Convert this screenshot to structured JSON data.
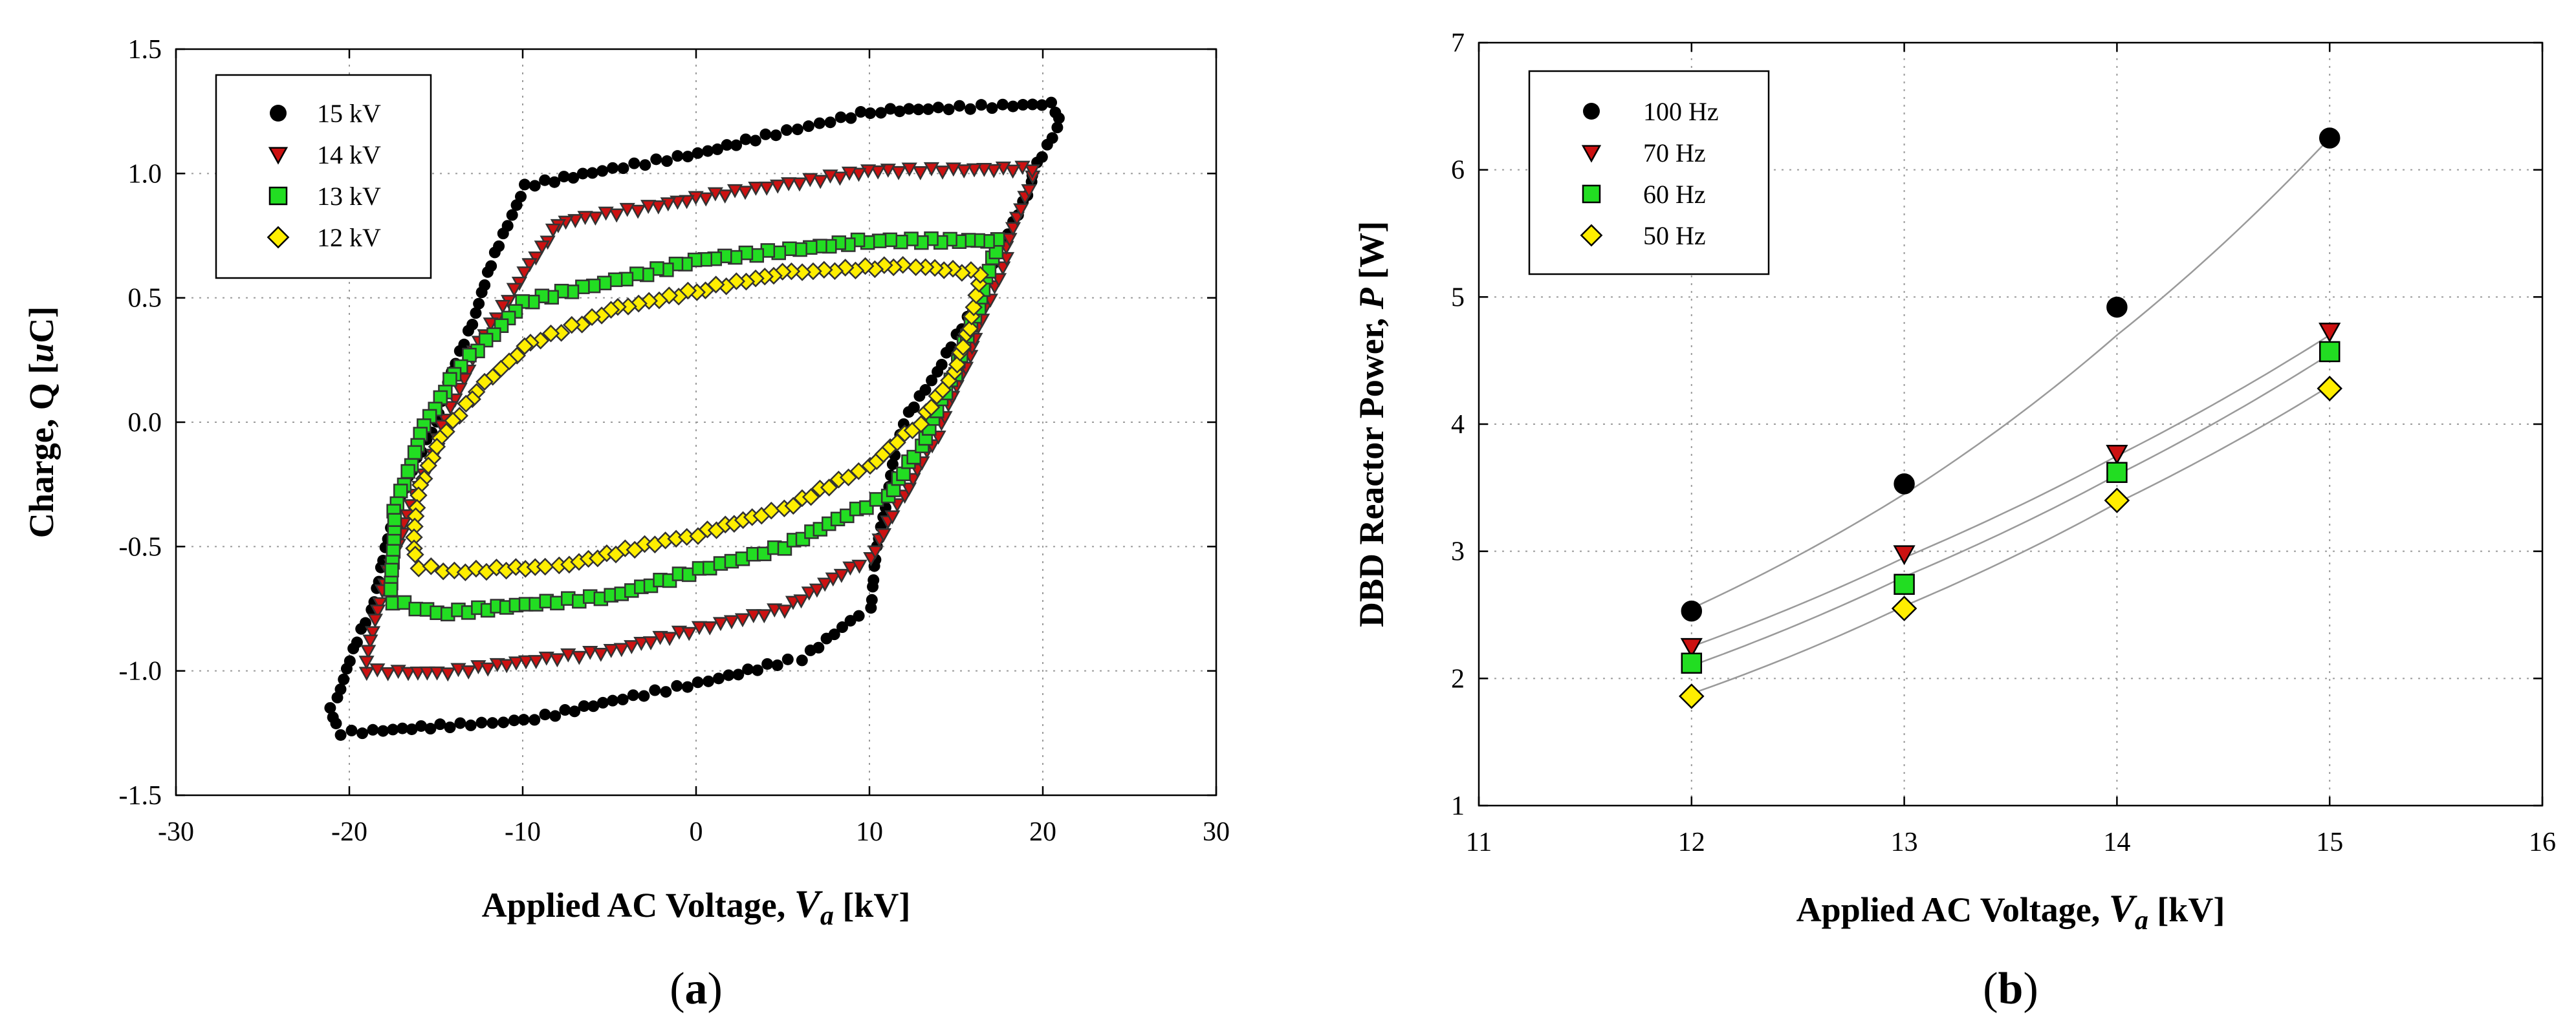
{
  "colors": {
    "series_15kV": "#000000",
    "series_14kV": "#cc1111",
    "series_13kV": "#22dd22",
    "series_12kV": "#ffee00",
    "fit_line": "#9a9a9a"
  },
  "panels": [
    {
      "label_pre": "(",
      "label_letter": "a",
      "label_post": ")"
    },
    {
      "label_pre": "(",
      "label_letter": "b",
      "label_post": ")"
    }
  ],
  "chart_data": [
    {
      "type": "scatter",
      "title": "",
      "xlabel_main": "Applied AC Voltage, ",
      "xlabel_var": "V",
      "xlabel_sub": "a",
      "xlabel_unit": " [kV]",
      "ylabel_main": "Charge, Q [",
      "ylabel_var": "u",
      "ylabel_unit": "C]",
      "xlim": [
        -30,
        30
      ],
      "ylim": [
        -1.5,
        1.5
      ],
      "xticks": [
        "-30",
        "-20",
        "-10",
        "0",
        "10",
        "20",
        "30"
      ],
      "yticks": [
        "-1.5",
        "-1.0",
        "-0.5",
        "0.0",
        "0.5",
        "1.0",
        "1.5"
      ],
      "grid": true,
      "legend_position": "top-left",
      "series": [
        {
          "name": "15 kV",
          "marker": "circle",
          "loop": [
            [
              -20.5,
              -1.25
            ],
            [
              -10,
              -1.2
            ],
            [
              0,
              -1.05
            ],
            [
              6,
              -0.95
            ],
            [
              10,
              -0.75
            ],
            [
              11,
              -0.3
            ],
            [
              12,
              0
            ],
            [
              14,
              0.2
            ],
            [
              17,
              0.6
            ],
            [
              19.5,
              1.0
            ],
            [
              21,
              1.22
            ],
            [
              20.5,
              1.28
            ],
            [
              10,
              1.25
            ],
            [
              0,
              1.08
            ],
            [
              -10,
              0.95
            ],
            [
              -13,
              0.4
            ],
            [
              -15,
              0
            ],
            [
              -17,
              -0.3
            ],
            [
              -19,
              -0.8
            ],
            [
              -21,
              -1.15
            ]
          ]
        },
        {
          "name": "14 kV",
          "marker": "triangle-down",
          "loop": [
            [
              -19,
              -1.0
            ],
            [
              -15,
              -1.01
            ],
            [
              -5,
              -0.92
            ],
            [
              5,
              -0.75
            ],
            [
              10,
              -0.55
            ],
            [
              12,
              -0.3
            ],
            [
              14,
              -0.05
            ],
            [
              16,
              0.3
            ],
            [
              18,
              0.7
            ],
            [
              19.5,
              1.02
            ],
            [
              10,
              1.01
            ],
            [
              0,
              0.9
            ],
            [
              -8,
              0.8
            ],
            [
              -10,
              0.6
            ],
            [
              -13,
              0.25
            ],
            [
              -15,
              -0.1
            ],
            [
              -17,
              -0.45
            ],
            [
              -18.5,
              -0.8
            ]
          ]
        },
        {
          "name": "13 kV",
          "marker": "square",
          "loop": [
            [
              -17.5,
              -0.72
            ],
            [
              -15,
              -0.77
            ],
            [
              -5,
              -0.7
            ],
            [
              5,
              -0.5
            ],
            [
              11,
              -0.3
            ],
            [
              13,
              -0.1
            ],
            [
              15,
              0.2
            ],
            [
              16.5,
              0.5
            ],
            [
              17.5,
              0.73
            ],
            [
              10,
              0.73
            ],
            [
              0,
              0.65
            ],
            [
              -10,
              0.48
            ],
            [
              -14,
              0.2
            ],
            [
              -16,
              -0.05
            ],
            [
              -17.5,
              -0.4
            ]
          ]
        },
        {
          "name": "12 kV",
          "marker": "diamond",
          "loop": [
            [
              -16,
              -0.58
            ],
            [
              -14,
              -0.6
            ],
            [
              -8,
              -0.58
            ],
            [
              0,
              -0.45
            ],
            [
              5,
              -0.35
            ],
            [
              10,
              -0.18
            ],
            [
              13,
              0
            ],
            [
              15,
              0.2
            ],
            [
              16,
              0.42
            ],
            [
              16.5,
              0.6
            ],
            [
              12,
              0.63
            ],
            [
              5,
              0.6
            ],
            [
              0,
              0.53
            ],
            [
              -5,
              0.45
            ],
            [
              -10,
              0.3
            ],
            [
              -13,
              0.1
            ],
            [
              -15,
              -0.1
            ],
            [
              -16,
              -0.3
            ],
            [
              -16.2,
              -0.5
            ]
          ]
        }
      ]
    },
    {
      "type": "scatter",
      "title": "",
      "xlabel_main": "Applied AC Voltage, ",
      "xlabel_var": "V",
      "xlabel_sub": "a",
      "xlabel_unit": " [kV]",
      "ylabel_main": "DBD Reactor Power, ",
      "ylabel_var": "P",
      "ylabel_unit": " [W]",
      "xlim": [
        11,
        16
      ],
      "ylim": [
        1,
        7
      ],
      "xticks": [
        "11",
        "12",
        "13",
        "14",
        "15",
        "16"
      ],
      "yticks": [
        "1",
        "2",
        "3",
        "4",
        "5",
        "6",
        "7"
      ],
      "grid": true,
      "legend_position": "top-left",
      "x": [
        12,
        13,
        14,
        15
      ],
      "series": [
        {
          "name": "100 Hz",
          "marker": "circle",
          "values": [
            2.53,
            3.53,
            4.92,
            6.25
          ],
          "fit": [
            2.55,
            3.45,
            4.7,
            6.25
          ]
        },
        {
          "name": "70 Hz",
          "marker": "triangle-down",
          "values": [
            2.25,
            2.98,
            3.77,
            4.73
          ],
          "fit": [
            2.25,
            2.95,
            3.75,
            4.7
          ]
        },
        {
          "name": "60 Hz",
          "marker": "square",
          "values": [
            2.12,
            2.74,
            3.62,
            4.57
          ],
          "fit": [
            2.1,
            2.8,
            3.6,
            4.55
          ]
        },
        {
          "name": "50 Hz",
          "marker": "diamond",
          "values": [
            1.86,
            2.55,
            3.4,
            4.28
          ],
          "fit": [
            1.88,
            2.57,
            3.38,
            4.3
          ]
        }
      ]
    }
  ]
}
